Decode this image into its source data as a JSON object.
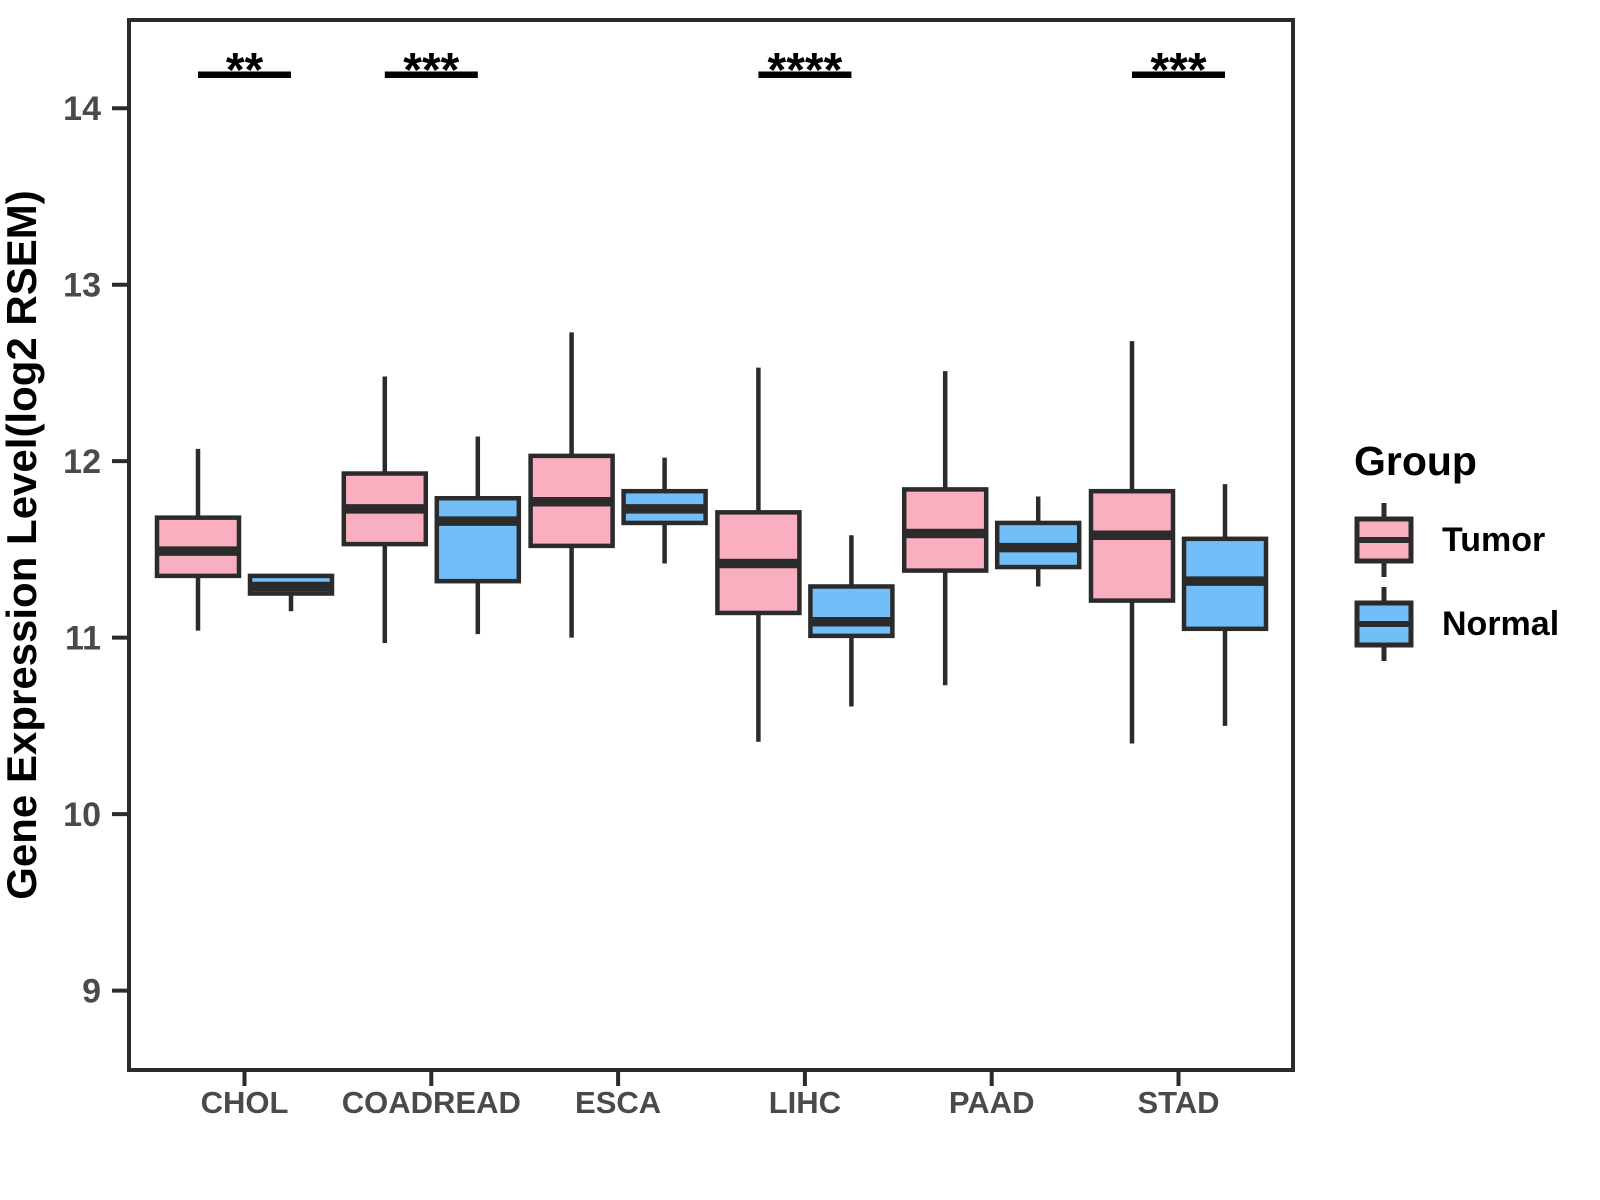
{
  "figure": {
    "background": "#FFFFFF"
  },
  "chart_data": {
    "type": "boxplot",
    "title": "",
    "xlabel": "",
    "ylabel": "Gene Expression Level(log2 RSEM)",
    "ylim": [
      8.55,
      14.5
    ],
    "yticks": [
      "9",
      "10",
      "11",
      "12",
      "13",
      "14"
    ],
    "ytick_values": [
      9,
      10,
      11,
      12,
      13,
      14
    ],
    "grid": "off",
    "legend_position": "right",
    "categories": [
      "CHOL",
      "COADREAD",
      "ESCA",
      "LIHC",
      "PAAD",
      "STAD"
    ],
    "box_value_order": [
      "min",
      "q1",
      "median",
      "q3",
      "max"
    ],
    "series": [
      {
        "name": "Tumor",
        "color": "#FAAFC0",
        "boxes": [
          [
            11.04,
            11.35,
            11.49,
            11.68,
            12.07
          ],
          [
            10.97,
            11.53,
            11.73,
            11.93,
            12.48
          ],
          [
            11.0,
            11.52,
            11.77,
            12.03,
            12.73
          ],
          [
            10.41,
            11.14,
            11.42,
            11.71,
            12.53
          ],
          [
            10.73,
            11.38,
            11.59,
            11.84,
            12.51
          ],
          [
            10.4,
            11.21,
            11.58,
            11.83,
            12.68
          ]
        ]
      },
      {
        "name": "Normal",
        "color": "#72BEF8",
        "boxes": [
          [
            11.15,
            11.25,
            11.29,
            11.35,
            11.36
          ],
          [
            11.02,
            11.32,
            11.66,
            11.79,
            12.14
          ],
          [
            11.42,
            11.65,
            11.73,
            11.83,
            12.02
          ],
          [
            10.61,
            11.01,
            11.09,
            11.29,
            11.58
          ],
          [
            11.29,
            11.4,
            11.51,
            11.65,
            11.8
          ],
          [
            10.5,
            11.05,
            11.32,
            11.56,
            11.87
          ]
        ]
      }
    ],
    "significance": [
      {
        "category": "CHOL",
        "label": "**"
      },
      {
        "category": "COADREAD",
        "label": "***"
      },
      {
        "category": "LIHC",
        "label": "****"
      },
      {
        "category": "STAD",
        "label": "***"
      }
    ],
    "legend": {
      "title": "Group",
      "entries": [
        "Tumor",
        "Normal"
      ]
    },
    "colors": {
      "tumor_fill": "#FAAFC0",
      "normal_fill": "#72BEF8",
      "box_border": "#2B2B2B",
      "axis_line": "#2B2B2B",
      "tick_label": "#4A4A4A",
      "axis_title": "#000000",
      "significance": "#000000"
    }
  }
}
